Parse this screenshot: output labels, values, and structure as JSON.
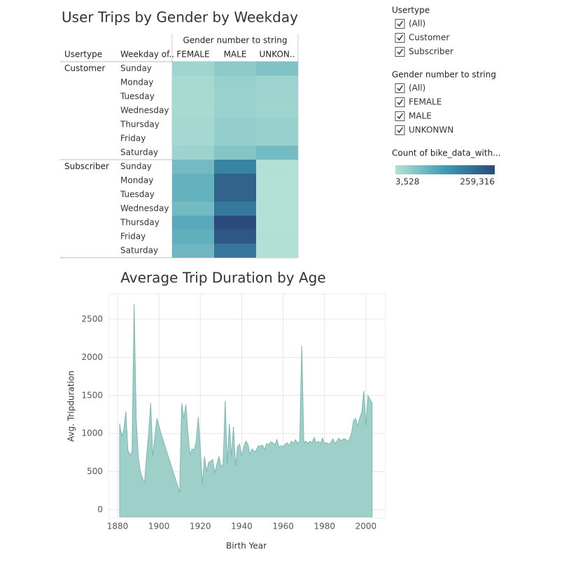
{
  "chart_data": [
    {
      "type": "heatmap",
      "title": "User Trips by Gender by Weekday",
      "column_header": "Gender number to string",
      "row_headers": [
        "Usertype",
        "Weekday of.."
      ],
      "usertypes": [
        "Customer",
        "Subscriber"
      ],
      "weekdays": [
        "Sunday",
        "Monday",
        "Tuesday",
        "Wednesday",
        "Thursday",
        "Friday",
        "Saturday"
      ],
      "columns": [
        "FEMALE",
        "MALE",
        "UNKON.."
      ],
      "values": [
        [
          [
            25000,
            45000,
            60000
          ],
          [
            18000,
            35000,
            30000
          ],
          [
            18000,
            33000,
            28000
          ],
          [
            17000,
            32000,
            25000
          ],
          [
            20000,
            38000,
            35000
          ],
          [
            20000,
            38000,
            35000
          ],
          [
            30000,
            55000,
            75000
          ]
        ],
        [
          [
            75000,
            170000,
            5000
          ],
          [
            90000,
            220000,
            4000
          ],
          [
            90000,
            220000,
            3800
          ],
          [
            75000,
            185000,
            3528
          ],
          [
            105000,
            259316,
            4200
          ],
          [
            95000,
            240000,
            4500
          ],
          [
            80000,
            190000,
            6000
          ]
        ]
      ],
      "color_scale": {
        "title": "Count of bike_data_with...",
        "min": {
          "value": 3528,
          "label": "3,528"
        },
        "max": {
          "value": 259316,
          "label": "259,316"
        },
        "colors": [
          "#b4e1d5",
          "#3f9bb4",
          "#2a4b7c"
        ]
      }
    },
    {
      "type": "area",
      "title": "Average Trip Duration by Age",
      "x_label": "Birth Year",
      "y_label": "Avg. Tripduration",
      "color": "#9fcfc9",
      "line_color": "#7db7b1",
      "grid": true,
      "xlim": [
        1875.6,
        2009.5
      ],
      "ylim": [
        -110,
        2830
      ],
      "xticks": [
        1880,
        1900,
        1920,
        1940,
        1960,
        1980,
        2000
      ],
      "yticks": [
        0,
        500,
        1000,
        1500,
        2000,
        2500
      ],
      "x": [
        1881,
        1882,
        1883,
        1884,
        1885,
        1886,
        1887,
        1888,
        1889,
        1890,
        1891,
        1892,
        1893,
        1894,
        1895,
        1896,
        1897,
        1898,
        1899,
        1900,
        1901,
        1910,
        1911,
        1912,
        1913,
        1914,
        1915,
        1916,
        1917,
        1918,
        1919,
        1920,
        1921,
        1922,
        1923,
        1924,
        1925,
        1926,
        1927,
        1928,
        1929,
        1930,
        1931,
        1932,
        1933,
        1934,
        1935,
        1936,
        1937,
        1938,
        1939,
        1940,
        1941,
        1942,
        1943,
        1944,
        1945,
        1946,
        1947,
        1948,
        1949,
        1950,
        1951,
        1952,
        1953,
        1954,
        1955,
        1956,
        1957,
        1958,
        1959,
        1960,
        1961,
        1962,
        1963,
        1964,
        1965,
        1966,
        1967,
        1968,
        1969,
        1970,
        1971,
        1972,
        1973,
        1974,
        1975,
        1976,
        1977,
        1978,
        1979,
        1980,
        1981,
        1982,
        1983,
        1984,
        1985,
        1986,
        1987,
        1988,
        1989,
        1990,
        1991,
        1992,
        1993,
        1994,
        1995,
        1996,
        1997,
        1998,
        1999,
        2000,
        2001,
        2002,
        2003
      ],
      "values": [
        1130,
        960,
        1050,
        1290,
        780,
        720,
        760,
        2700,
        1200,
        700,
        500,
        420,
        350,
        700,
        1000,
        1400,
        700,
        950,
        1200,
        1100,
        1000,
        230,
        1400,
        1200,
        1380,
        1000,
        720,
        800,
        780,
        900,
        1220,
        800,
        330,
        700,
        500,
        620,
        640,
        660,
        480,
        600,
        700,
        560,
        600,
        1430,
        600,
        1130,
        700,
        1090,
        580,
        830,
        860,
        700,
        830,
        900,
        860,
        730,
        800,
        760,
        780,
        840,
        830,
        850,
        790,
        870,
        850,
        890,
        880,
        850,
        920,
        820,
        840,
        830,
        860,
        880,
        840,
        900,
        870,
        920,
        870,
        900,
        2150,
        880,
        900,
        870,
        900,
        880,
        950,
        880,
        900,
        870,
        940,
        870,
        880,
        860,
        880,
        930,
        870,
        900,
        940,
        900,
        930,
        930,
        900,
        920,
        1000,
        1170,
        1200,
        1100,
        1200,
        1280,
        1560,
        1100,
        1500,
        1450,
        1400
      ]
    }
  ],
  "filters": [
    {
      "title": "Usertype",
      "items": [
        "(All)",
        "Customer",
        "Subscriber"
      ]
    },
    {
      "title": "Gender number to string",
      "items": [
        "(All)",
        "FEMALE",
        "MALE",
        "UNKONWN"
      ]
    }
  ]
}
